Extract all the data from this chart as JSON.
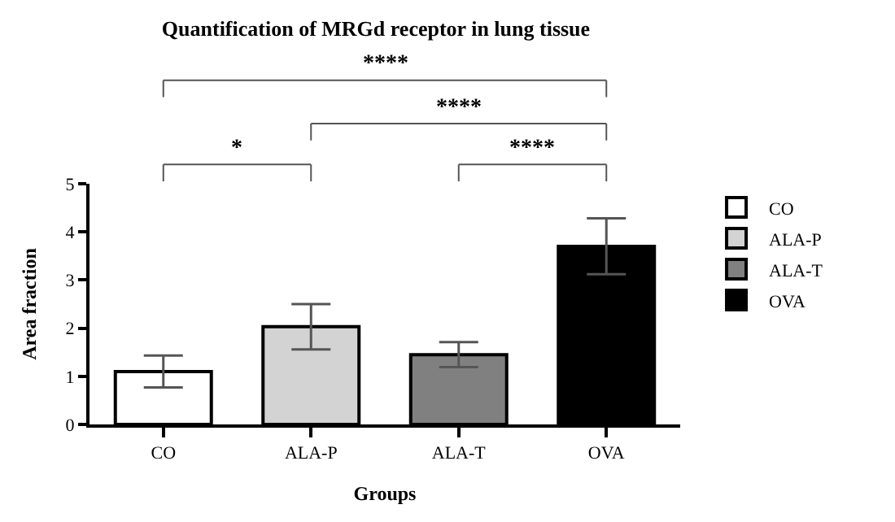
{
  "chart_data": {
    "type": "bar",
    "title": "Quantification of MRGd receptor in lung tissue",
    "xlabel": "Groups",
    "ylabel": "Area fraction",
    "categories": [
      "CO",
      "ALA-P",
      "ALA-T",
      "OVA"
    ],
    "stacked": true,
    "series": [
      {
        "name": "CO",
        "color": "#ffffff",
        "values": [
          1.1,
          null,
          null,
          null
        ],
        "errors": [
          0.33,
          null,
          null,
          null
        ]
      },
      {
        "name": "ALA-P",
        "color": "#d3d3d3",
        "values": [
          null,
          2.03,
          null,
          null
        ],
        "errors": [
          null,
          0.47,
          null,
          null
        ]
      },
      {
        "name": "ALA-T",
        "color": "#808080",
        "values": [
          null,
          null,
          1.45,
          null
        ],
        "errors": [
          null,
          null,
          0.26,
          null
        ]
      },
      {
        "name": "OVA",
        "color": "#000000",
        "values": [
          null,
          null,
          null,
          3.7
        ],
        "errors": [
          null,
          null,
          null,
          0.58
        ]
      }
    ],
    "ylim": [
      0,
      5
    ],
    "yticks": [
      0,
      1,
      2,
      3,
      4,
      5
    ],
    "legend": "right",
    "annotations": [
      "****",
      "****",
      "*",
      "****"
    ]
  }
}
